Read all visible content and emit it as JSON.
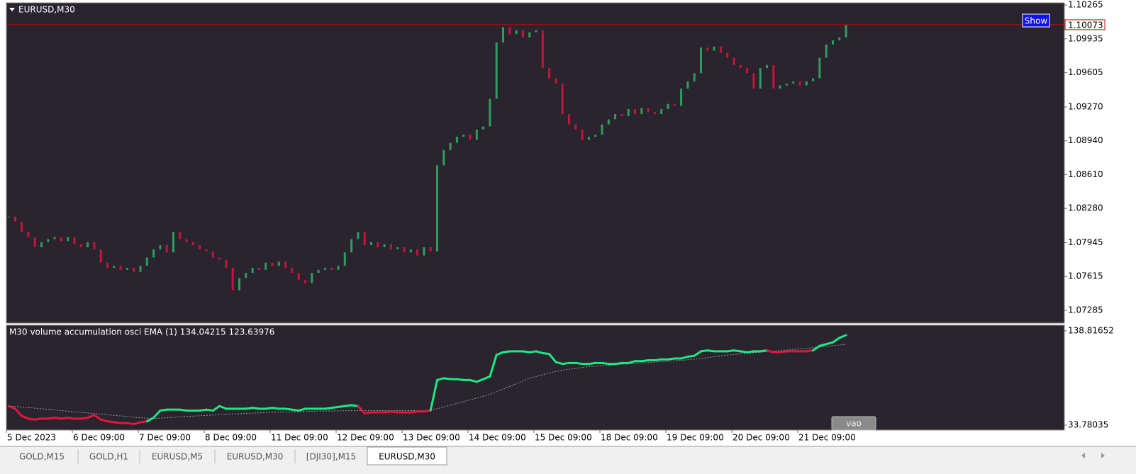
{
  "ui": {
    "symbol": "EURUSD,M30",
    "indicator_label": "M30 volume accumulation osci EMA (1) 134.04215 123.63976",
    "show_button": "Show",
    "vao_button": "vao",
    "tabs": [
      "GOLD,M15",
      "GOLD,H1",
      "EURUSD,M5",
      "EURUSD,M30",
      "[DJI30],M15",
      "EURUSD,M30"
    ]
  },
  "chart_data": [
    {
      "type": "candlestick",
      "up_color": "#2e9e5e",
      "down_color": "#c8143c",
      "last_price": 1.10073,
      "last_color": "#d00000",
      "categories": [
        "5 Dec 2023",
        null,
        null,
        null,
        null,
        null,
        null,
        null,
        null,
        null,
        "6 Dec 09:00",
        null,
        null,
        null,
        null,
        null,
        null,
        null,
        null,
        null,
        "7 Dec 09:00",
        null,
        null,
        null,
        null,
        null,
        null,
        null,
        null,
        null,
        "8 Dec 09:00",
        null,
        null,
        null,
        null,
        null,
        null,
        null,
        null,
        null,
        "11 Dec 09:00",
        null,
        null,
        null,
        null,
        null,
        null,
        null,
        null,
        null,
        "12 Dec 09:00",
        null,
        null,
        null,
        null,
        null,
        null,
        null,
        null,
        null,
        "13 Dec 09:00",
        null,
        null,
        null,
        null,
        null,
        null,
        null,
        null,
        null,
        "14 Dec 09:00",
        null,
        null,
        null,
        null,
        null,
        null,
        null,
        null,
        null,
        "15 Dec 09:00",
        null,
        null,
        null,
        null,
        null,
        null,
        null,
        null,
        null,
        "18 Dec 09:00",
        null,
        null,
        null,
        null,
        null,
        null,
        null,
        null,
        null,
        "19 Dec 09:00",
        null,
        null,
        null,
        null,
        null,
        null,
        null,
        null,
        null,
        "20 Dec 09:00",
        null,
        null,
        null,
        null,
        null,
        null,
        null,
        null,
        null,
        "21 Dec 09:00",
        null,
        null,
        null,
        null,
        null,
        null,
        null
      ],
      "values": [
        1.082,
        1.0815,
        1.0805,
        1.08,
        1.079,
        1.0795,
        1.0798,
        1.08,
        1.0796,
        1.08,
        1.0793,
        1.079,
        1.0795,
        1.0788,
        1.0775,
        1.077,
        1.0772,
        1.0768,
        1.077,
        1.0766,
        1.0772,
        1.078,
        1.0788,
        1.0792,
        1.0785,
        1.0805,
        1.0798,
        1.0795,
        1.0792,
        1.0788,
        1.0786,
        1.078,
        1.0778,
        1.077,
        1.0748,
        1.076,
        1.0765,
        1.077,
        1.0768,
        1.0775,
        1.0772,
        1.0776,
        1.077,
        1.0765,
        1.0758,
        1.0755,
        1.0765,
        1.0768,
        1.077,
        1.0768,
        1.0772,
        1.0785,
        1.0798,
        1.0805,
        1.0792,
        1.0795,
        1.079,
        1.0793,
        1.0788,
        1.079,
        1.0785,
        1.0788,
        1.0782,
        1.079,
        1.0786,
        1.087,
        1.0885,
        1.0892,
        1.0898,
        1.09,
        1.0895,
        1.0905,
        1.0908,
        1.0935,
        1.099,
        1.1005,
        1.0998,
        1.1002,
        1.0995,
        1.1,
        1.1002,
        1.0965,
        1.0955,
        1.095,
        1.092,
        1.091,
        1.0905,
        1.0895,
        1.0898,
        1.09,
        1.091,
        1.0915,
        1.092,
        1.0918,
        1.0925,
        1.092,
        1.0926,
        1.0922,
        1.092,
        1.0925,
        1.093,
        1.0928,
        1.0945,
        1.0952,
        1.096,
        1.0985,
        1.0982,
        1.0986,
        1.098,
        1.0975,
        1.0968,
        1.0965,
        1.096,
        1.0945,
        1.0965,
        1.0968,
        1.0945,
        1.0948,
        1.095,
        1.0952,
        1.0948,
        1.0952,
        1.0955,
        1.0975,
        1.0988,
        1.0992,
        1.0995,
        1.1007
      ],
      "ylim": [
        1.0716,
        1.1028
      ],
      "yticks": [
        1.10265,
        1.09935,
        1.09605,
        {
          "value": 1.0927,
          "label": "1.09270"
        },
        {
          "value": 1.0894,
          "label": "1.08940"
        },
        {
          "value": 1.0861,
          "label": "1.08610"
        },
        {
          "value": 1.0828,
          "label": "1.08280"
        },
        1.07945,
        1.07615,
        1.07285
      ]
    },
    {
      "type": "oscillator",
      "above_color": "#1de883",
      "below_color": "#e0173d",
      "ema_color": "#9a9a9a",
      "values": [
        55,
        52,
        44,
        41,
        40,
        41,
        41,
        42,
        41,
        42,
        41,
        41,
        42,
        45,
        40,
        38,
        37,
        36,
        36,
        35,
        37,
        38,
        42,
        50,
        51,
        51,
        51,
        50,
        50,
        50,
        51,
        50,
        55,
        52,
        52,
        52,
        52,
        53,
        52,
        52,
        53,
        52,
        52,
        51,
        50,
        52,
        52,
        52,
        52,
        53,
        54,
        55,
        56,
        55,
        47,
        48,
        48,
        48,
        49,
        48,
        48,
        48,
        49,
        49,
        50,
        84,
        86,
        85,
        85,
        84,
        84,
        82,
        85,
        88,
        112,
        115,
        116,
        116,
        116,
        115,
        116,
        114,
        113,
        104,
        102,
        103,
        103,
        102,
        102,
        103,
        103,
        102,
        102,
        103,
        103,
        105,
        105,
        106,
        106,
        107,
        107,
        108,
        108,
        110,
        111,
        116,
        117,
        116,
        116,
        116,
        117,
        116,
        115,
        116,
        116,
        117,
        115,
        115,
        116,
        116,
        116,
        116,
        117,
        122,
        124,
        126,
        131,
        134.04215
      ],
      "ema": [
        55,
        54.5,
        54,
        53.3,
        52.6,
        52,
        51.3,
        50.6,
        50,
        49.3,
        48.6,
        48,
        47.3,
        46.6,
        46,
        45.3,
        44.6,
        44,
        43.3,
        42.6,
        42,
        41.5,
        41,
        41.5,
        42,
        42.5,
        43,
        43.4,
        43.8,
        44.2,
        44.6,
        45,
        45.4,
        45.8,
        46.2,
        46.5,
        46.8,
        47.1,
        47.4,
        47.7,
        48,
        48.2,
        48.4,
        48.6,
        48.8,
        49,
        49.2,
        49.4,
        49.5,
        49.6,
        49.7,
        49.8,
        49.9,
        50,
        50,
        50,
        50,
        50,
        50,
        50,
        50,
        50,
        50,
        50,
        50.5,
        52,
        54,
        56,
        58,
        60,
        62,
        64,
        66,
        68,
        71,
        74,
        77,
        80,
        83,
        86,
        88,
        90,
        92,
        93.5,
        95,
        96,
        97,
        98,
        98.8,
        99.5,
        100,
        100.5,
        101,
        101.5,
        102,
        102.5,
        103,
        103.5,
        104,
        104.5,
        105,
        105.5,
        106,
        106.6,
        107.2,
        108,
        109,
        110,
        111,
        111.8,
        112.5,
        113.2,
        113.8,
        114.4,
        115,
        115.6,
        116.2,
        116.8,
        117.4,
        118,
        118.6,
        119.3,
        120,
        120.8,
        121.6,
        122.4,
        123,
        123.63976
      ],
      "ylim": [
        28.25,
        145.1
      ],
      "yticks": [
        138.81652,
        33.78035
      ]
    }
  ]
}
